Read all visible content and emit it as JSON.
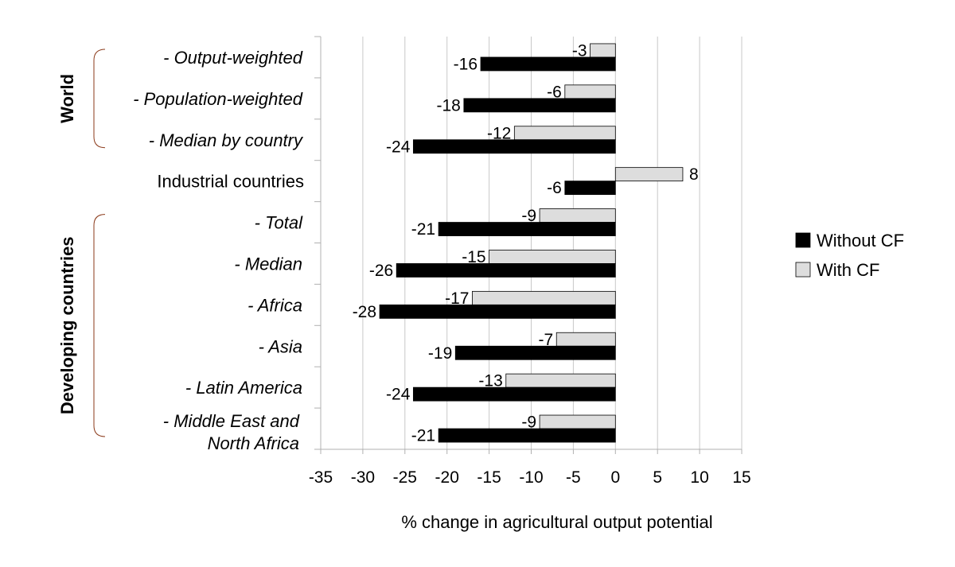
{
  "chart_data": {
    "type": "bar",
    "orientation": "horizontal",
    "categories": [
      "- Output-weighted",
      "- Population-weighted",
      "- Median by country",
      "Industrial countries",
      "- Total",
      "- Median",
      "- Africa",
      "- Asia",
      "- Latin America",
      [
        "- Middle East and",
        "North Africa"
      ]
    ],
    "groups": [
      {
        "label": "World",
        "from": 0,
        "to": 2
      },
      {
        "label": "Developing countries",
        "from": 4,
        "to": 9
      }
    ],
    "series": [
      {
        "name": "Without CF",
        "color": "#000000",
        "values": [
          -16,
          -18,
          -24,
          -6,
          -21,
          -26,
          -28,
          -19,
          -24,
          -21
        ]
      },
      {
        "name": "With CF",
        "color": "#dddddd",
        "values": [
          -3,
          -6,
          -12,
          8,
          -9,
          -15,
          -17,
          -7,
          -13,
          -9
        ]
      }
    ],
    "xlabel": "% change in agricultural output potential",
    "xlim": [
      -35,
      15
    ],
    "xticks": [
      -35,
      -30,
      -25,
      -20,
      -15,
      -10,
      -5,
      0,
      5,
      10,
      15
    ],
    "grid": "vertical",
    "legend": "right"
  }
}
